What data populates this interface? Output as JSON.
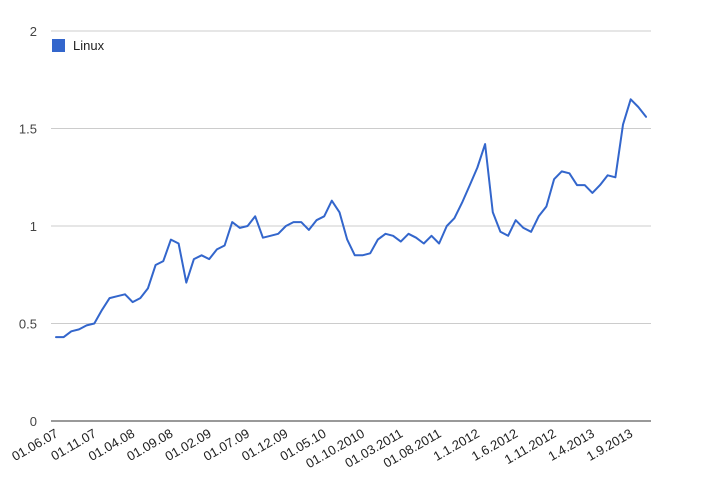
{
  "chart_data": {
    "type": "line",
    "title": "",
    "xlabel": "",
    "ylabel": "",
    "ylim": [
      0,
      2
    ],
    "yticks": [
      "0",
      "0.5",
      "1",
      "1.5",
      "2"
    ],
    "ytick_values": [
      0,
      0.5,
      1,
      1.5,
      2
    ],
    "grid": true,
    "legend_position": "top-left",
    "xtick_labels": [
      "01.06.07",
      "01.11.07",
      "01.04.08",
      "01.09.08",
      "01.02.09",
      "01.07.09",
      "01.12.09",
      "01.05.10",
      "01.10.2010",
      "01.03.2011",
      "01.08.2011",
      "1.1.2012",
      "1.6.2012",
      "1.11.2012",
      "1.4.2013",
      "1.9.2013"
    ],
    "xtick_index": [
      0,
      5,
      10,
      15,
      20,
      25,
      30,
      35,
      40,
      45,
      50,
      55,
      60,
      65,
      70,
      75
    ],
    "series": [
      {
        "name": "Linux",
        "color": "#3366cc",
        "values": [
          0.43,
          0.43,
          0.46,
          0.47,
          0.49,
          0.5,
          0.57,
          0.63,
          0.64,
          0.65,
          0.61,
          0.63,
          0.68,
          0.8,
          0.82,
          0.93,
          0.91,
          0.71,
          0.83,
          0.85,
          0.83,
          0.88,
          0.9,
          1.02,
          0.99,
          1.0,
          1.05,
          0.94,
          0.95,
          0.96,
          1.0,
          1.02,
          1.02,
          0.98,
          1.03,
          1.05,
          1.13,
          1.07,
          0.93,
          0.85,
          0.85,
          0.86,
          0.93,
          0.96,
          0.95,
          0.92,
          0.96,
          0.94,
          0.91,
          0.95,
          0.91,
          1.0,
          1.04,
          1.12,
          1.21,
          1.3,
          1.42,
          1.07,
          0.97,
          0.95,
          1.03,
          0.99,
          0.97,
          1.05,
          1.1,
          1.24,
          1.28,
          1.27,
          1.21,
          1.21,
          1.17,
          1.21,
          1.26,
          1.25,
          1.52,
          1.65,
          1.61,
          1.56
        ]
      }
    ]
  }
}
